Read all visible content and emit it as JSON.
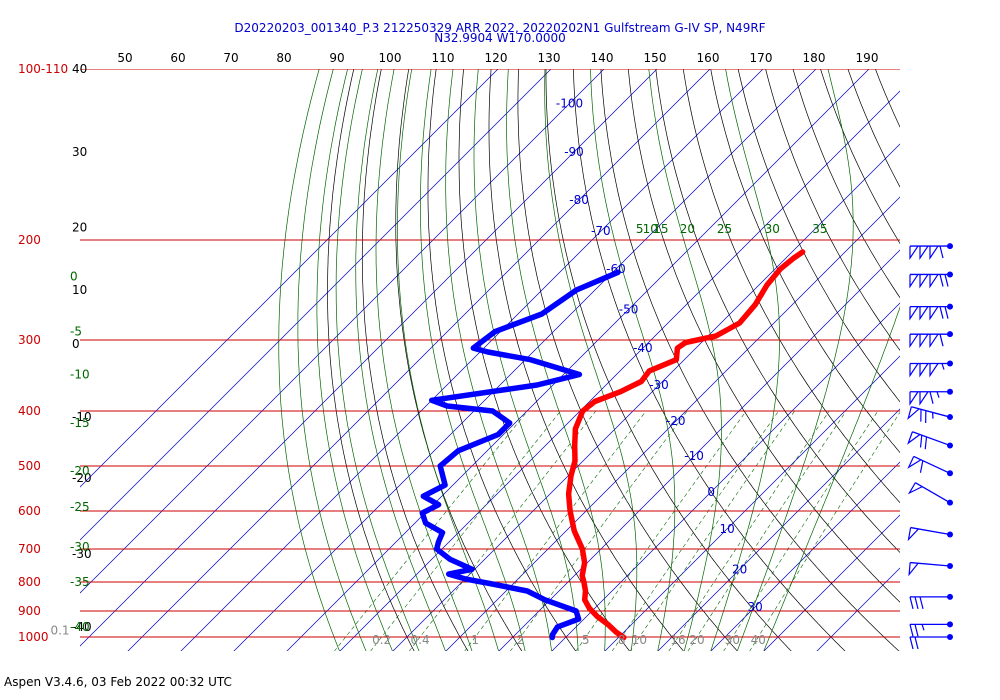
{
  "title_line1": "D20220203_001340_P.3 212250329 ARR 2022, 20220202N1 Gulfstream G-IV SP, N49RF",
  "title_line2": "N32.9904 W170.0000",
  "footer": "Aspen V3.4.6, 03 Feb 2022  00:32 UTC",
  "chart_data": {
    "type": "line",
    "chart_kind": "skew-T log-P sounding",
    "colors": {
      "temperature": "#ff0000",
      "dewpoint": "#0000ff",
      "isobar": "#cc0000",
      "isotherm": "#0000cc",
      "dry_adiabat": "#000000",
      "moist_adiabat": "#006600",
      "mixing_ratio": "#006600",
      "title": "#0000cc"
    },
    "pressure_labels": [
      {
        "p": 100,
        "text": "100-110"
      },
      {
        "p": 200,
        "text": "200"
      },
      {
        "p": 300,
        "text": "300"
      },
      {
        "p": 400,
        "text": "400"
      },
      {
        "p": 500,
        "text": "500"
      },
      {
        "p": 600,
        "text": "600"
      },
      {
        "p": 700,
        "text": "700"
      },
      {
        "p": 800,
        "text": "800"
      },
      {
        "p": 900,
        "text": "900"
      },
      {
        "p": 1000,
        "text": "1000"
      }
    ],
    "isobars_hpa": [
      100,
      200,
      300,
      400,
      500,
      600,
      700,
      800,
      900,
      1000
    ],
    "isotherm_range_c": [
      -120,
      50
    ],
    "top_axis_labels": [
      "50",
      "60",
      "70",
      "80",
      "90",
      "100",
      "110",
      "120",
      "130",
      "140",
      "150",
      "160",
      "170",
      "180",
      "190"
    ],
    "temperature_labels": [
      {
        "t": -100,
        "p": 115,
        "text": "-100"
      },
      {
        "t": -90,
        "p": 140,
        "text": "-90"
      },
      {
        "t": -80,
        "p": 170,
        "text": "-80"
      },
      {
        "t": -70,
        "p": 193,
        "text": "-70"
      },
      {
        "t": -60,
        "p": 225,
        "text": "-60"
      },
      {
        "t": -50,
        "p": 265,
        "text": "-50"
      },
      {
        "t": -40,
        "p": 310,
        "text": "-40"
      },
      {
        "t": -30,
        "p": 360,
        "text": "-30"
      },
      {
        "t": -20,
        "p": 417,
        "text": "-20"
      },
      {
        "t": -10,
        "p": 480,
        "text": "-10"
      },
      {
        "t": 0,
        "p": 555,
        "text": "0"
      },
      {
        "t": 10,
        "p": 645,
        "text": "10"
      },
      {
        "t": 20,
        "p": 760,
        "text": "20"
      },
      {
        "t": 30,
        "p": 885,
        "text": "30"
      }
    ],
    "left_black_labels": [
      {
        "p": 100,
        "text": "40"
      },
      {
        "p": 140,
        "text": "30"
      },
      {
        "p": 190,
        "text": "20"
      },
      {
        "p": 245,
        "text": "10"
      },
      {
        "p": 305,
        "text": "0"
      },
      {
        "p": 410,
        "text": "-10"
      },
      {
        "p": 525,
        "text": "-20"
      },
      {
        "p": 715,
        "text": "-30"
      },
      {
        "p": 960,
        "text": "-40"
      }
    ],
    "left_green_labels": [
      {
        "p": 232,
        "text": "0"
      },
      {
        "p": 290,
        "text": "-5"
      },
      {
        "p": 345,
        "text": "-10"
      },
      {
        "p": 420,
        "text": "-15"
      },
      {
        "p": 510,
        "text": "-20"
      },
      {
        "p": 590,
        "text": "-25"
      },
      {
        "p": 695,
        "text": "-30"
      },
      {
        "p": 800,
        "text": "-35"
      },
      {
        "p": 960,
        "text": "-40"
      }
    ],
    "wetbulb_top_labels": [
      {
        "t": -61,
        "text": "5"
      },
      {
        "t": -59,
        "text": "10"
      },
      {
        "t": -57,
        "text": "15"
      },
      {
        "t": -52,
        "text": "20"
      },
      {
        "t": -45,
        "text": "25"
      },
      {
        "t": -36,
        "text": "30"
      },
      {
        "t": -27,
        "text": "35"
      }
    ],
    "mixing_ratio_labels": [
      "0.1",
      "0.2",
      "0.4",
      "1",
      "2",
      "5",
      "8",
      "10",
      "16",
      "20",
      "30",
      "40"
    ],
    "temperature_profile": [
      {
        "p": 210,
        "t": -28.0
      },
      {
        "p": 215,
        "t": -28.5
      },
      {
        "p": 225,
        "t": -29.0
      },
      {
        "p": 240,
        "t": -28.5
      },
      {
        "p": 260,
        "t": -27.0
      },
      {
        "p": 280,
        "t": -26.5
      },
      {
        "p": 295,
        "t": -28.5
      },
      {
        "p": 303,
        "t": -33.0
      },
      {
        "p": 310,
        "t": -33.5
      },
      {
        "p": 325,
        "t": -31.5
      },
      {
        "p": 340,
        "t": -34.5
      },
      {
        "p": 355,
        "t": -34.0
      },
      {
        "p": 370,
        "t": -36.0
      },
      {
        "p": 385,
        "t": -39.0
      },
      {
        "p": 400,
        "t": -39.5
      },
      {
        "p": 430,
        "t": -37.5
      },
      {
        "p": 460,
        "t": -34.5
      },
      {
        "p": 490,
        "t": -31.5
      },
      {
        "p": 520,
        "t": -29.5
      },
      {
        "p": 560,
        "t": -26.5
      },
      {
        "p": 600,
        "t": -23.0
      },
      {
        "p": 650,
        "t": -18.5
      },
      {
        "p": 700,
        "t": -13.5
      },
      {
        "p": 740,
        "t": -10.5
      },
      {
        "p": 780,
        "t": -8.5
      },
      {
        "p": 800,
        "t": -7.0
      },
      {
        "p": 830,
        "t": -5.0
      },
      {
        "p": 860,
        "t": -3.5
      },
      {
        "p": 890,
        "t": -1.0
      },
      {
        "p": 920,
        "t": 2.0
      },
      {
        "p": 950,
        "t": 5.5
      },
      {
        "p": 980,
        "t": 8.5
      },
      {
        "p": 1002,
        "t": 11.0
      }
    ],
    "dewpoint_profile": [
      {
        "p": 228,
        "t": -59.0
      },
      {
        "p": 245,
        "t": -63.5
      },
      {
        "p": 270,
        "t": -65.5
      },
      {
        "p": 290,
        "t": -71.0
      },
      {
        "p": 310,
        "t": -72.0
      },
      {
        "p": 315,
        "t": -68.5
      },
      {
        "p": 325,
        "t": -59.0
      },
      {
        "p": 345,
        "t": -47.0
      },
      {
        "p": 360,
        "t": -53.0
      },
      {
        "p": 383,
        "t": -70.0
      },
      {
        "p": 392,
        "t": -66.0
      },
      {
        "p": 400,
        "t": -56.5
      },
      {
        "p": 420,
        "t": -51.0
      },
      {
        "p": 440,
        "t": -51.0
      },
      {
        "p": 470,
        "t": -55.5
      },
      {
        "p": 500,
        "t": -56.0
      },
      {
        "p": 540,
        "t": -51.5
      },
      {
        "p": 565,
        "t": -53.5
      },
      {
        "p": 585,
        "t": -49.0
      },
      {
        "p": 605,
        "t": -50.5
      },
      {
        "p": 630,
        "t": -48.0
      },
      {
        "p": 655,
        "t": -43.0
      },
      {
        "p": 680,
        "t": -42.0
      },
      {
        "p": 700,
        "t": -41.0
      },
      {
        "p": 730,
        "t": -36.5
      },
      {
        "p": 760,
        "t": -30.5
      },
      {
        "p": 775,
        "t": -34.0
      },
      {
        "p": 790,
        "t": -30.0
      },
      {
        "p": 805,
        "t": -24.5
      },
      {
        "p": 830,
        "t": -16.0
      },
      {
        "p": 860,
        "t": -11.0
      },
      {
        "p": 900,
        "t": -3.0
      },
      {
        "p": 930,
        "t": -1.0
      },
      {
        "p": 960,
        "t": -3.5
      },
      {
        "p": 990,
        "t": -3.0
      },
      {
        "p": 1002,
        "t": -2.5
      }
    ],
    "wind_barbs": [
      {
        "p": 205,
        "pennants": 3,
        "barbs": 1,
        "half": false,
        "dir": 270
      },
      {
        "p": 230,
        "pennants": 3,
        "barbs": 2,
        "half": false,
        "dir": 270
      },
      {
        "p": 262,
        "pennants": 3,
        "barbs": 2,
        "half": false,
        "dir": 270
      },
      {
        "p": 293,
        "pennants": 3,
        "barbs": 1,
        "half": false,
        "dir": 270
      },
      {
        "p": 330,
        "pennants": 3,
        "barbs": 0,
        "half": true,
        "dir": 270
      },
      {
        "p": 370,
        "pennants": 2,
        "barbs": 1,
        "half": true,
        "dir": 270
      },
      {
        "p": 410,
        "pennants": 1,
        "barbs": 2,
        "half": true,
        "dir": 285
      },
      {
        "p": 460,
        "pennants": 1,
        "barbs": 2,
        "half": false,
        "dir": 290
      },
      {
        "p": 515,
        "pennants": 1,
        "barbs": 1,
        "half": false,
        "dir": 295
      },
      {
        "p": 580,
        "pennants": 1,
        "barbs": 0,
        "half": false,
        "dir": 300
      },
      {
        "p": 660,
        "pennants": 1,
        "barbs": 0,
        "half": false,
        "dir": 280
      },
      {
        "p": 750,
        "pennants": 1,
        "barbs": 0,
        "half": false,
        "dir": 275
      },
      {
        "p": 850,
        "pennants": 0,
        "barbs": 3,
        "half": false,
        "dir": 270
      },
      {
        "p": 950,
        "pennants": 0,
        "barbs": 2,
        "half": true,
        "dir": 270
      },
      {
        "p": 1000,
        "pennants": 0,
        "barbs": 2,
        "half": false,
        "dir": 270
      }
    ]
  }
}
